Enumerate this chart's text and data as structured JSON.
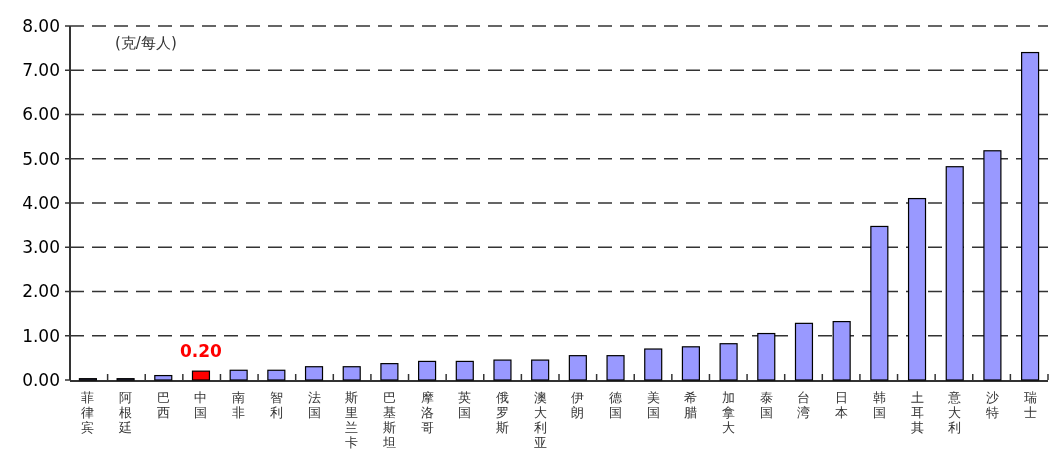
{
  "chart_data": {
    "type": "bar",
    "categories": [
      "菲律宾",
      "阿根廷",
      "巴西",
      "中国",
      "南非",
      "智利",
      "法国",
      "斯里兰卡",
      "巴基斯坦",
      "摩洛哥",
      "英国",
      "俄罗斯",
      "澳大利亚",
      "伊朗",
      "德国",
      "美国",
      "希腊",
      "加拿大",
      "泰国",
      "台湾",
      "日本",
      "韩国",
      "土耳其",
      "意大利",
      "沙特",
      "瑞士"
    ],
    "values": [
      0.03,
      0.03,
      0.1,
      0.2,
      0.22,
      0.22,
      0.3,
      0.3,
      0.37,
      0.42,
      0.42,
      0.45,
      0.45,
      0.55,
      0.55,
      0.7,
      0.75,
      0.82,
      1.05,
      1.28,
      1.32,
      3.47,
      4.1,
      4.82,
      5.18,
      7.4
    ],
    "colors": [
      "#9999ff",
      "#9999ff",
      "#9999ff",
      "#ff0000",
      "#9999ff",
      "#9999ff",
      "#9999ff",
      "#9999ff",
      "#9999ff",
      "#9999ff",
      "#9999ff",
      "#9999ff",
      "#9999ff",
      "#9999ff",
      "#9999ff",
      "#9999ff",
      "#9999ff",
      "#9999ff",
      "#9999ff",
      "#9999ff",
      "#9999ff",
      "#9999ff",
      "#9999ff",
      "#9999ff",
      "#9999ff",
      "#9999ff"
    ],
    "value_labels": [
      null,
      null,
      null,
      "0.20",
      null,
      null,
      null,
      null,
      null,
      null,
      null,
      null,
      null,
      null,
      null,
      null,
      null,
      null,
      null,
      null,
      null,
      null,
      null,
      null,
      null,
      null
    ],
    "ylim": [
      0,
      8
    ],
    "yticks": [
      {
        "value": 0,
        "label": "0.00"
      },
      {
        "value": 1,
        "label": "1.00"
      },
      {
        "value": 2,
        "label": "2.00"
      },
      {
        "value": 3,
        "label": "3.00"
      },
      {
        "value": 4,
        "label": "4.00"
      },
      {
        "value": 5,
        "label": "5.00"
      },
      {
        "value": 6,
        "label": "6.00"
      },
      {
        "value": 7,
        "label": "7.00"
      },
      {
        "value": 8,
        "label": "8.00"
      }
    ],
    "grid": "y",
    "annotations": [
      "(克/每人)"
    ]
  }
}
